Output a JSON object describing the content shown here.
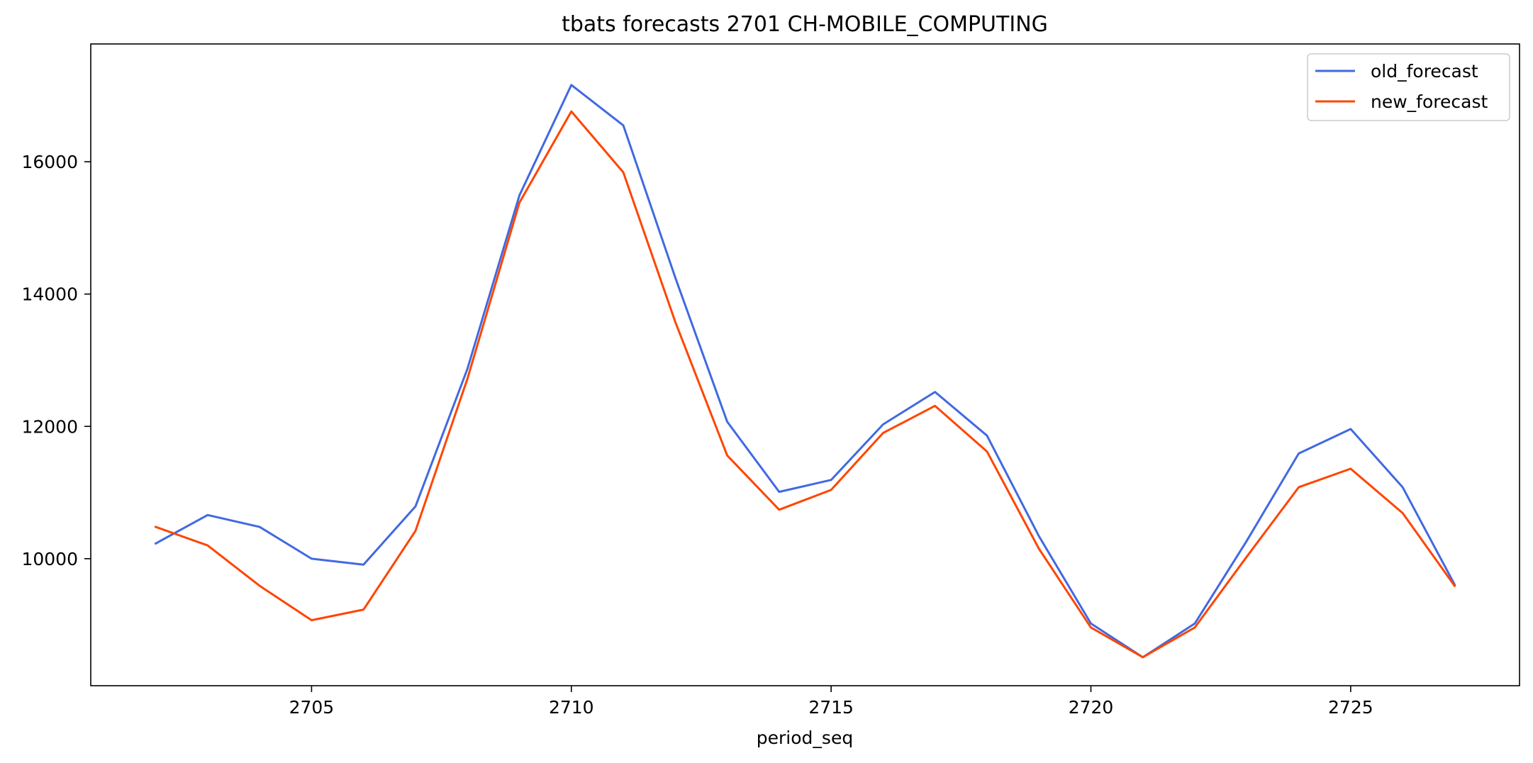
{
  "chart_data": {
    "type": "line",
    "title": "tbats forecasts 2701 CH-MOBILE_COMPUTING",
    "xlabel": "period_seq",
    "ylabel": "",
    "x": [
      2702,
      2703,
      2704,
      2705,
      2706,
      2707,
      2708,
      2709,
      2710,
      2711,
      2712,
      2713,
      2714,
      2715,
      2716,
      2717,
      2718,
      2719,
      2720,
      2721,
      2722,
      2723,
      2724,
      2725,
      2726,
      2727
    ],
    "xlim": [
      2700.75,
      2728.25
    ],
    "ylim": [
      8080,
      17780
    ],
    "xticks": [
      2705,
      2710,
      2715,
      2720,
      2725
    ],
    "yticks": [
      10000,
      12000,
      14000,
      16000
    ],
    "grid": false,
    "legend_position": "top-right",
    "series": [
      {
        "name": "old_forecast",
        "color": "#4169E1",
        "values": [
          10230,
          10660,
          10480,
          10000,
          9910,
          10790,
          12870,
          15490,
          17160,
          16550,
          14250,
          12070,
          11010,
          11190,
          12030,
          12520,
          11860,
          10340,
          9020,
          8510,
          9020,
          10270,
          11590,
          11960,
          11080,
          9610
        ]
      },
      {
        "name": "new_forecast",
        "color": "#FF4500",
        "values": [
          10480,
          10200,
          9590,
          9070,
          9230,
          10420,
          12720,
          15380,
          16760,
          15840,
          13580,
          11560,
          10740,
          11040,
          11900,
          12310,
          11620,
          10150,
          8960,
          8510,
          8960,
          10030,
          11080,
          11360,
          10690,
          9590
        ]
      }
    ]
  }
}
